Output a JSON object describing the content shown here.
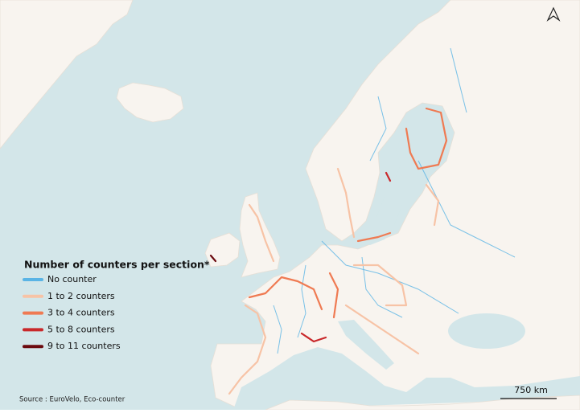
{
  "legend": {
    "title": "Number of counters per section*",
    "items": [
      {
        "label": "No counter",
        "color": "#5ab4e5"
      },
      {
        "label": "1 to 2 counters",
        "color": "#f7c3a6"
      },
      {
        "label": "3 to 4 counters",
        "color": "#ef7a52"
      },
      {
        "label": "5 to 8 counters",
        "color": "#c9282a"
      },
      {
        "label": "9 to 11 counters",
        "color": "#6b0a0f"
      }
    ]
  },
  "scale_bar": {
    "label": "750 km"
  },
  "source": "Source : EuroVelo, Eco-counter"
}
